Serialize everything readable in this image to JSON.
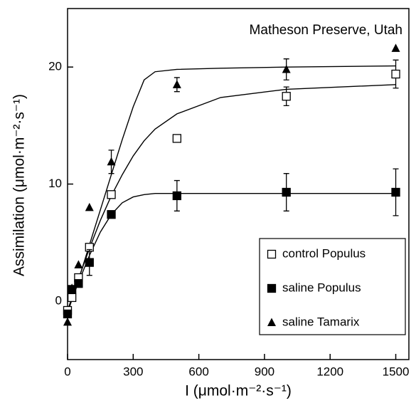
{
  "chart_data": {
    "type": "scatter",
    "annotation": "Matheson Preserve, Utah",
    "x_label": "I (μmol·m⁻²·s⁻¹)",
    "y_label": "Assimilation (μmol·m⁻²·s⁻¹)",
    "xlim": [
      0,
      1560
    ],
    "ylim": [
      -5,
      25
    ],
    "xticks": [
      0,
      300,
      600,
      900,
      1200,
      1500
    ],
    "yticks": [
      0,
      10,
      20
    ],
    "legend": "lower right",
    "fit_x": [
      0,
      50,
      100,
      150,
      200,
      250,
      300,
      350,
      400,
      500,
      700,
      1000,
      1500
    ],
    "series": [
      {
        "name": "control Populus",
        "marker": "open-square",
        "color": "#000000",
        "x": [
          0,
          20,
          50,
          100,
          200,
          500,
          1000,
          1500
        ],
        "values": [
          -0.8,
          0.3,
          2.0,
          4.6,
          9.1,
          13.9,
          17.5,
          19.4
        ],
        "errors": [
          null,
          null,
          null,
          null,
          null,
          null,
          0.8,
          1.2
        ],
        "fit": [
          -0.8,
          1.9,
          4.5,
          6.9,
          9.0,
          10.8,
          12.4,
          13.7,
          14.7,
          16.0,
          17.4,
          18.1,
          18.5
        ]
      },
      {
        "name": "saline Populus",
        "marker": "square",
        "color": "#000000",
        "x": [
          0,
          20,
          50,
          100,
          200,
          500,
          1000,
          1500
        ],
        "values": [
          -1.1,
          1.0,
          1.5,
          3.3,
          7.4,
          9.0,
          9.3,
          9.3
        ],
        "errors": [
          null,
          null,
          null,
          1.1,
          null,
          1.3,
          1.6,
          2.0
        ],
        "fit": [
          -0.8,
          1.6,
          3.9,
          5.9,
          7.4,
          8.4,
          8.9,
          9.1,
          9.2,
          9.2,
          9.2,
          9.2,
          9.2
        ]
      },
      {
        "name": "saline Tamarix",
        "marker": "triangle",
        "color": "#000000",
        "x": [
          0,
          20,
          50,
          100,
          200,
          500,
          1000,
          1500
        ],
        "values": [
          -1.8,
          1.1,
          3.1,
          8.0,
          11.9,
          18.5,
          19.8,
          21.6
        ],
        "errors": [
          null,
          null,
          null,
          null,
          1.0,
          0.6,
          0.9,
          null
        ],
        "fit": [
          -1.0,
          1.8,
          4.8,
          7.8,
          10.8,
          13.8,
          16.6,
          18.9,
          19.6,
          19.8,
          19.9,
          20.0,
          20.1
        ]
      }
    ]
  }
}
